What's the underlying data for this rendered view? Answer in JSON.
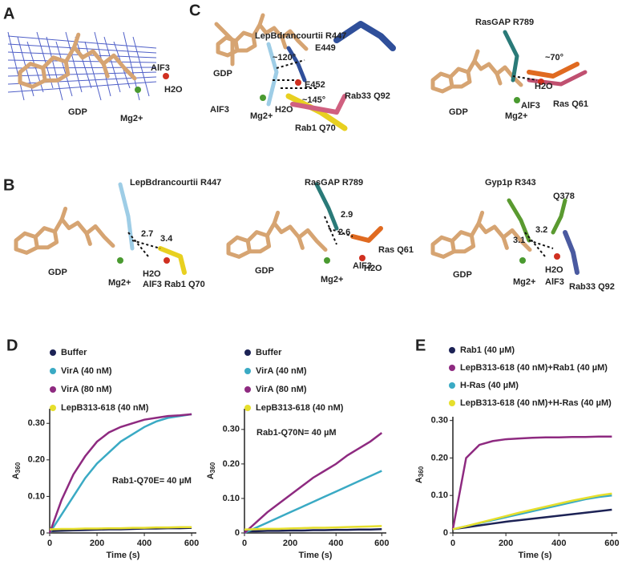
{
  "panels": {
    "A": {
      "letter": "A",
      "labels": [
        "GDP",
        "AlF3",
        "H2O",
        "Mg2+"
      ]
    },
    "C": {
      "letter": "C",
      "left": [
        "LepBdrancourtii R447",
        "E449",
        "E452",
        "~120°",
        "~145°",
        "GDP",
        "AlF3",
        "Mg2+",
        "H2O",
        "Rab33 Q92",
        "Rab1 Q70"
      ],
      "right": [
        "RasGAP R789",
        "~70°",
        "H2O",
        "GDP",
        "Mg2+",
        "AlF3",
        "Ras Q61"
      ]
    },
    "B": {
      "letter": "B",
      "first": [
        "LepBdrancourtii R447",
        "2.7",
        "3.4",
        "GDP",
        "Mg2+",
        "AlF3",
        "H2O",
        "Rab1 Q70"
      ],
      "second": [
        "RasGAP R789",
        "2.9",
        "2.6",
        "Ras Q61",
        "H2O",
        "GDP",
        "Mg2+",
        "AlF3"
      ],
      "third": [
        "Gyp1p R343",
        "Q378",
        "3.2",
        "3.1",
        "H2O",
        "GDP",
        "Mg2+",
        "AlF3",
        "Rab33 Q92"
      ]
    }
  },
  "chart_data": [
    {
      "type": "line",
      "panel": "D",
      "annotation": "Rab1-Q70E= 40 µM",
      "x_label": "Time (s)",
      "y_label": "A",
      "y_label_sub": "360",
      "x": [
        0,
        50,
        100,
        150,
        200,
        250,
        300,
        350,
        400,
        450,
        500,
        550,
        600
      ],
      "xlim": [
        0,
        620
      ],
      "xticks": [
        0,
        200,
        400,
        600
      ],
      "ylim": [
        0,
        0.34
      ],
      "yticks": [
        0,
        {
          "value": 0.1,
          "label": "0.10"
        },
        {
          "value": 0.2,
          "label": "0.20"
        },
        {
          "value": 0.3,
          "label": "0.30"
        }
      ],
      "series": [
        {
          "name": "Buffer",
          "color": "#1c2255",
          "values": [
            0.005,
            0.006,
            0.007,
            0.008,
            0.009,
            0.01,
            0.01,
            0.011,
            0.012,
            0.012,
            0.013,
            0.013,
            0.014
          ]
        },
        {
          "name": "VirA (40 nM)",
          "color": "#3aaac4",
          "values": [
            0,
            0.05,
            0.1,
            0.15,
            0.19,
            0.22,
            0.25,
            0.27,
            0.29,
            0.305,
            0.315,
            0.32,
            0.325
          ]
        },
        {
          "name": "VirA (80 nM)",
          "color": "#8e2a80",
          "values": [
            0,
            0.09,
            0.16,
            0.21,
            0.25,
            0.275,
            0.29,
            0.3,
            0.31,
            0.315,
            0.32,
            0.322,
            0.325
          ]
        },
        {
          "name": "LepB313-618 (40 nM)",
          "color": "#e6df2c",
          "values": [
            0.01,
            0.011,
            0.011,
            0.012,
            0.012,
            0.013,
            0.013,
            0.014,
            0.014,
            0.015,
            0.015,
            0.016,
            0.016
          ]
        }
      ]
    },
    {
      "type": "line",
      "annotation": "Rab1-Q70N= 40 µM",
      "x_label": "Time (s)",
      "y_label": "A",
      "y_label_sub": "360",
      "x": [
        0,
        50,
        100,
        150,
        200,
        250,
        300,
        350,
        400,
        450,
        500,
        550,
        600
      ],
      "xlim": [
        0,
        620
      ],
      "xticks": [
        0,
        200,
        400,
        600
      ],
      "ylim": [
        0,
        0.36
      ],
      "yticks": [
        0,
        {
          "value": 0.1,
          "label": "0.10"
        },
        {
          "value": 0.2,
          "label": "0.20"
        },
        {
          "value": 0.3,
          "label": "0.30"
        }
      ],
      "series": [
        {
          "name": "Buffer",
          "color": "#1c2255",
          "values": [
            0.005,
            0.005,
            0.006,
            0.006,
            0.007,
            0.007,
            0.008,
            0.008,
            0.009,
            0.009,
            0.01,
            0.01,
            0.011
          ]
        },
        {
          "name": "VirA (40 nM)",
          "color": "#3aaac4",
          "values": [
            0,
            0.015,
            0.03,
            0.045,
            0.06,
            0.075,
            0.09,
            0.105,
            0.12,
            0.135,
            0.15,
            0.165,
            0.18
          ]
        },
        {
          "name": "VirA (80 nM)",
          "color": "#8e2a80",
          "values": [
            0,
            0.03,
            0.06,
            0.085,
            0.11,
            0.135,
            0.16,
            0.18,
            0.2,
            0.225,
            0.245,
            0.265,
            0.29
          ]
        },
        {
          "name": "LepB313-618 (40 nM)",
          "color": "#e6df2c",
          "values": [
            0.01,
            0.011,
            0.012,
            0.012,
            0.013,
            0.014,
            0.015,
            0.015,
            0.016,
            0.017,
            0.018,
            0.019,
            0.02
          ]
        }
      ]
    },
    {
      "type": "line",
      "panel": "E",
      "x_label": "Time (s)",
      "y_label": "A",
      "y_label_sub": "360",
      "x": [
        0,
        50,
        100,
        150,
        200,
        250,
        300,
        350,
        400,
        450,
        500,
        550,
        600
      ],
      "xlim": [
        0,
        620
      ],
      "xticks": [
        0,
        200,
        400,
        600
      ],
      "ylim": [
        0,
        0.31
      ],
      "yticks": [
        0,
        {
          "value": 0.1,
          "label": "0.10"
        },
        {
          "value": 0.2,
          "label": "0.20"
        },
        {
          "value": 0.3,
          "label": "0.30"
        }
      ],
      "series": [
        {
          "name": "Rab1 (40 µM)",
          "color": "#1c2255",
          "values": [
            0.01,
            0.015,
            0.02,
            0.025,
            0.03,
            0.034,
            0.038,
            0.042,
            0.046,
            0.05,
            0.054,
            0.058,
            0.062
          ]
        },
        {
          "name": "LepB313-618 (40 nM)+Rab1 (40 µM)",
          "color": "#8e2a80",
          "values": [
            0.01,
            0.2,
            0.235,
            0.245,
            0.25,
            0.252,
            0.254,
            0.255,
            0.255,
            0.256,
            0.256,
            0.257,
            0.257
          ]
        },
        {
          "name": "H-Ras (40 µM)",
          "color": "#3aaac4",
          "values": [
            0.01,
            0.018,
            0.026,
            0.034,
            0.042,
            0.05,
            0.058,
            0.066,
            0.074,
            0.082,
            0.09,
            0.096,
            0.1
          ]
        },
        {
          "name": "LepB313-618 (40 nM)+H-Ras (40 µM)",
          "color": "#e6df2c",
          "values": [
            0.01,
            0.018,
            0.027,
            0.036,
            0.045,
            0.054,
            0.062,
            0.07,
            0.078,
            0.086,
            0.093,
            0.1,
            0.105
          ]
        }
      ]
    }
  ]
}
